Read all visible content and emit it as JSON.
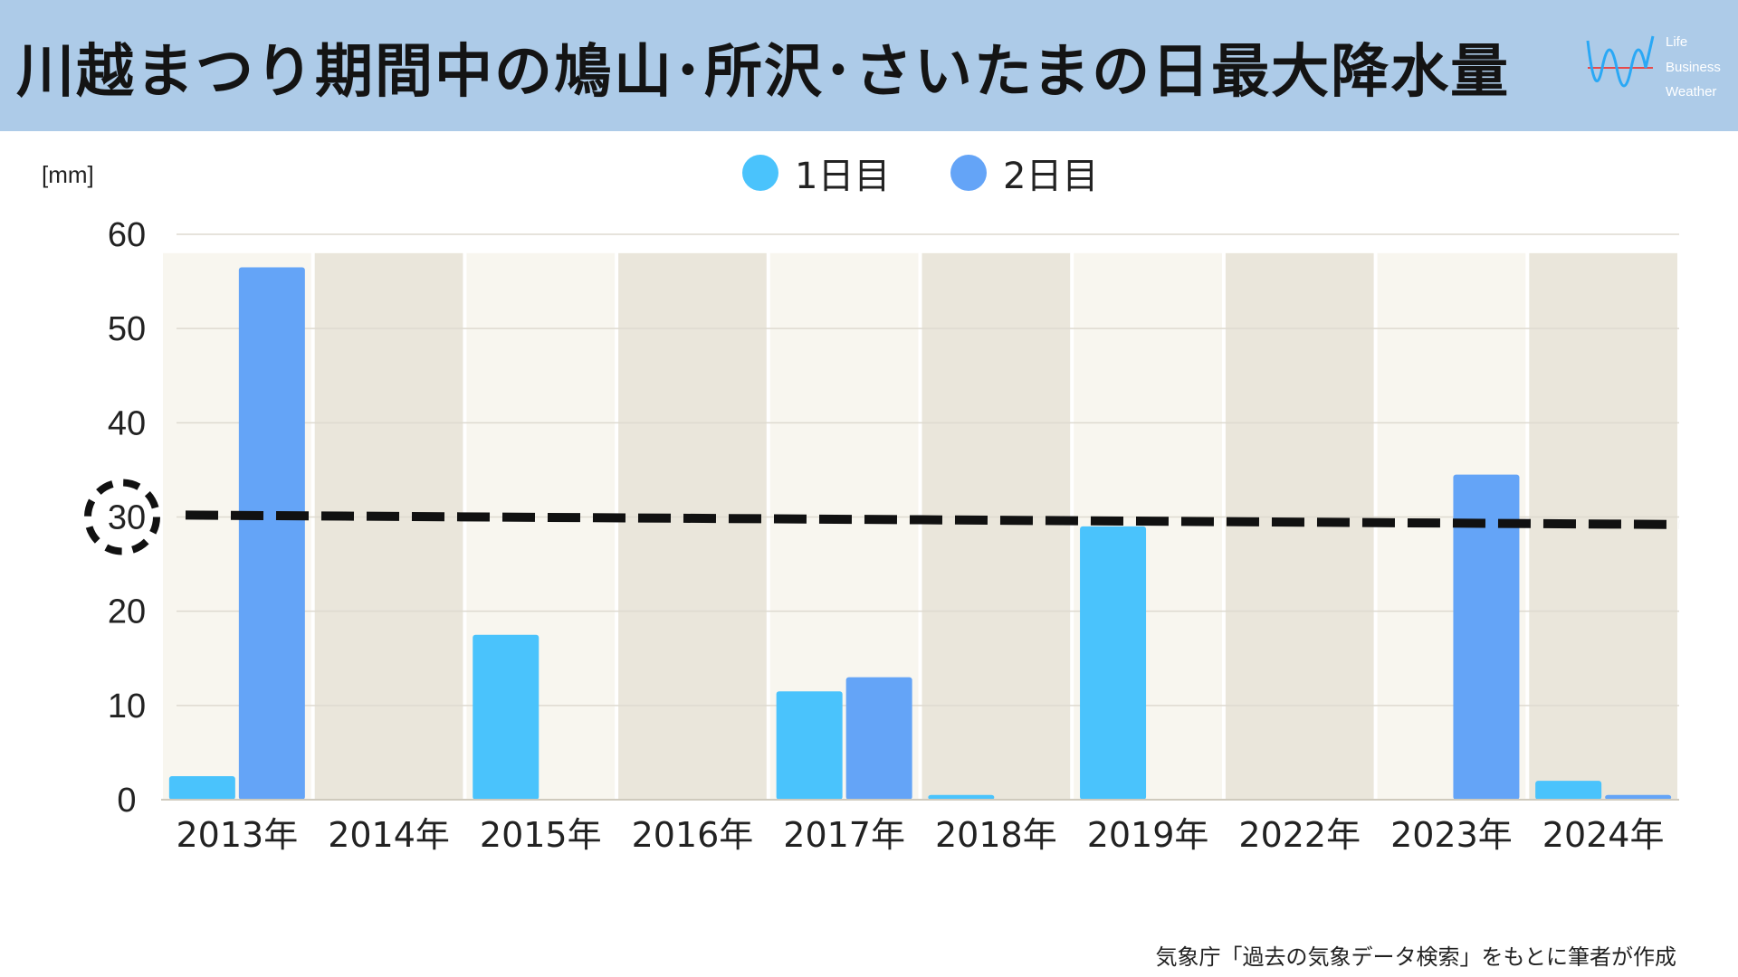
{
  "title": "川越まつり期間中の鳩山･所沢･さいたまの日最大降水量",
  "logo": {
    "line1": "Life",
    "line2": "Business",
    "line3": "Weather",
    "colors": [
      "#2aa8f5",
      "#e84a4a"
    ]
  },
  "unit_label": "[mm]",
  "legend": [
    {
      "label": "1日目",
      "color": "#4ac3fc"
    },
    {
      "label": "2日目",
      "color": "#64a4f7"
    }
  ],
  "source": "気象庁「過去の気象データ検索」をもとに筆者が作成",
  "chart_data": {
    "type": "bar",
    "categories": [
      "2013年",
      "2014年",
      "2015年",
      "2016年",
      "2017年",
      "2018年",
      "2019年",
      "2022年",
      "2023年",
      "2024年"
    ],
    "series": [
      {
        "name": "1日目",
        "values": [
          2.5,
          0,
          17.5,
          0,
          11.5,
          0.5,
          29,
          0,
          0,
          2
        ],
        "color": "#4ac3fc"
      },
      {
        "name": "2日目",
        "values": [
          56.5,
          0,
          0,
          0,
          13,
          0,
          0,
          0,
          34.5,
          0.5
        ],
        "color": "#64a4f7"
      }
    ],
    "ylim": [
      0,
      60
    ],
    "yticks": [
      0,
      10,
      20,
      30,
      40,
      50,
      60
    ],
    "highlighted_tick": "30",
    "reference_line": {
      "y_start": 30.2,
      "y_end": 29.2
    },
    "grid": true,
    "category_bg_colors": [
      "#f8f6ef",
      "#eae6db"
    ],
    "legend_position": "top-center"
  }
}
